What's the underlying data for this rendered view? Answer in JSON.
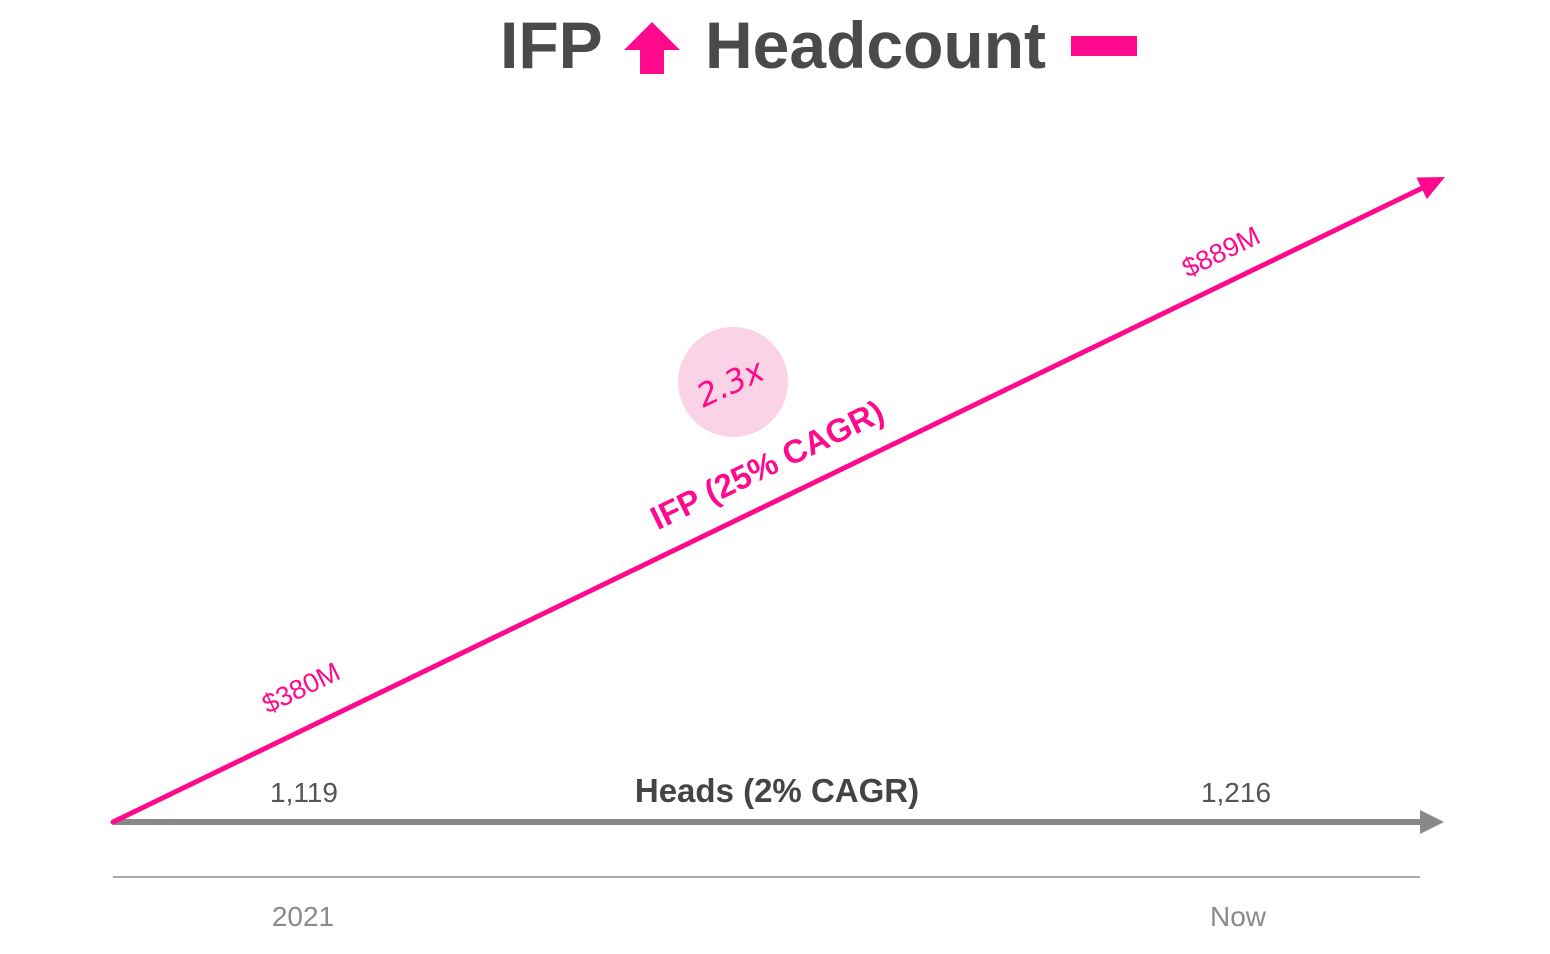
{
  "chart_data": {
    "type": "line",
    "title": {
      "part1": "IFP",
      "part2": "Headcount",
      "part1_indicator": "up-arrow-icon",
      "part2_indicator": "flat-dash-icon"
    },
    "categories": [
      "2021",
      "Now"
    ],
    "series": [
      {
        "name": "IFP (25% CAGR)",
        "values": [
          380,
          889
        ],
        "value_labels": [
          "$380M",
          "$889M"
        ],
        "unit": "$M",
        "color": "#ff0a8c",
        "multiplier_label": "2.3x"
      },
      {
        "name": "Heads (2% CAGR)",
        "values": [
          1119,
          1216
        ],
        "value_labels": [
          "1,119",
          "1,216"
        ],
        "color": "#888888"
      }
    ],
    "grid": false,
    "legend": "none"
  },
  "colors": {
    "accent": "#ff0a8c",
    "badge_fill": "#fbd3e6",
    "neutral": "#888888",
    "title": "#4a4a4a",
    "axis": "#aaaaaa"
  }
}
